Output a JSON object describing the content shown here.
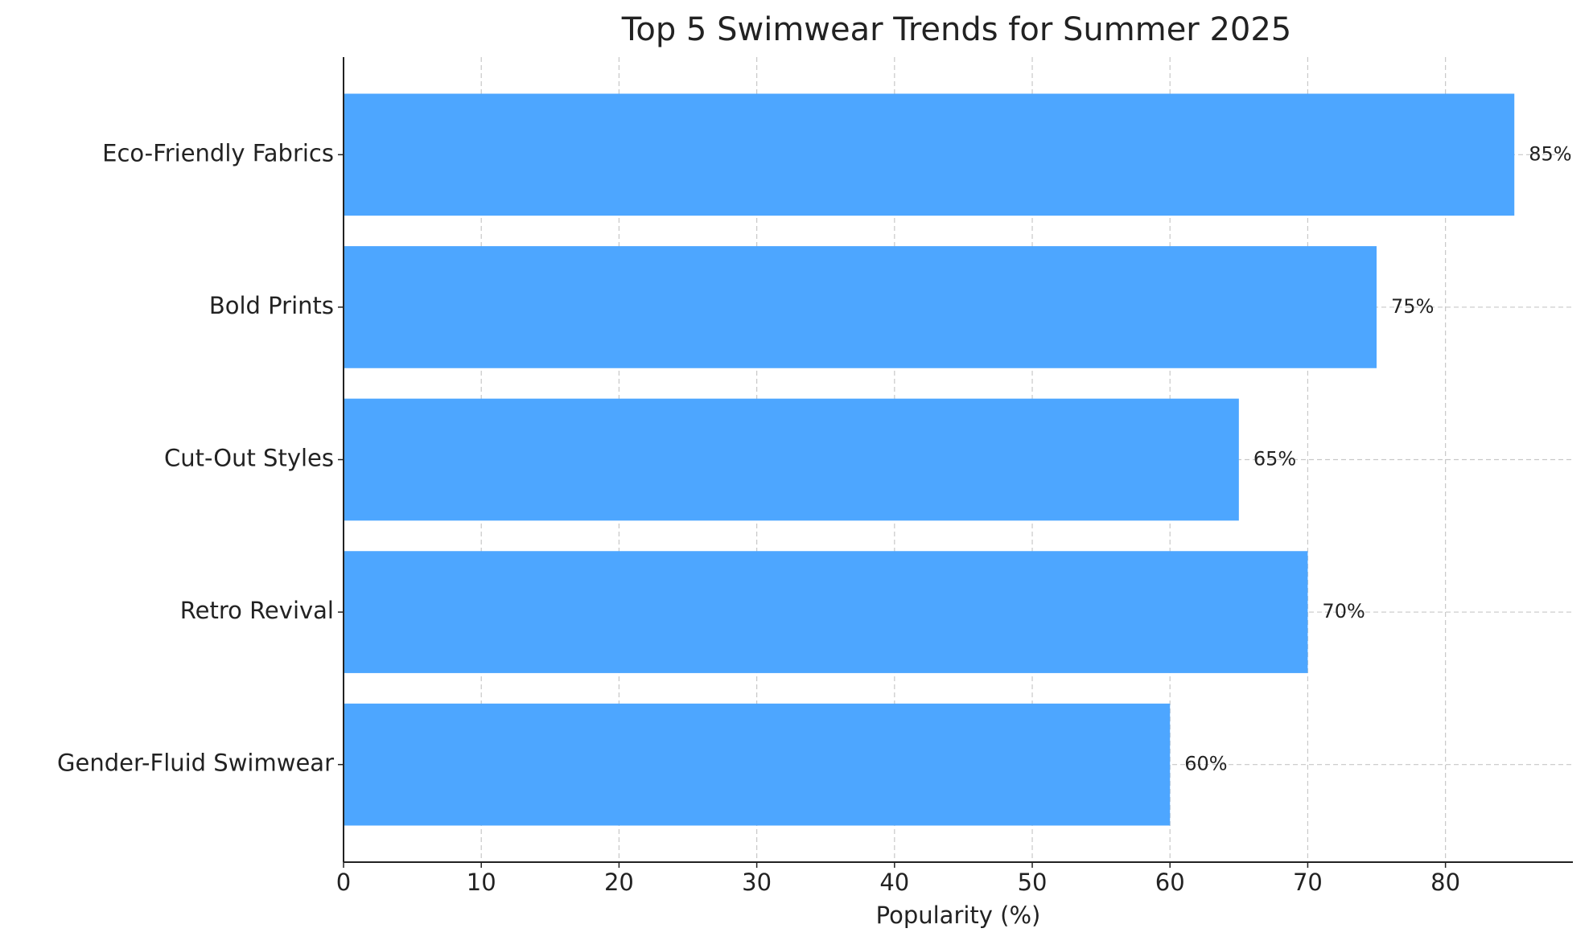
{
  "chart_data": {
    "type": "barh",
    "title": "Top 5 Swimwear Trends for Summer 2025",
    "x_label": "Popularity (%)",
    "categories": [
      "Eco-Friendly Fabrics",
      "Bold Prints",
      "Cut-Out Styles",
      "Retro Revival",
      "Gender-Fluid Swimwear"
    ],
    "values": [
      85,
      75,
      65,
      70,
      60
    ],
    "value_labels": [
      "85%",
      "75%",
      "65%",
      "70%",
      "60%"
    ],
    "color": "#4da6ff",
    "xlim": [
      0,
      89.25
    ],
    "xticks": [
      0,
      10,
      20,
      30,
      40,
      50,
      60,
      70,
      80
    ],
    "grid": true
  }
}
